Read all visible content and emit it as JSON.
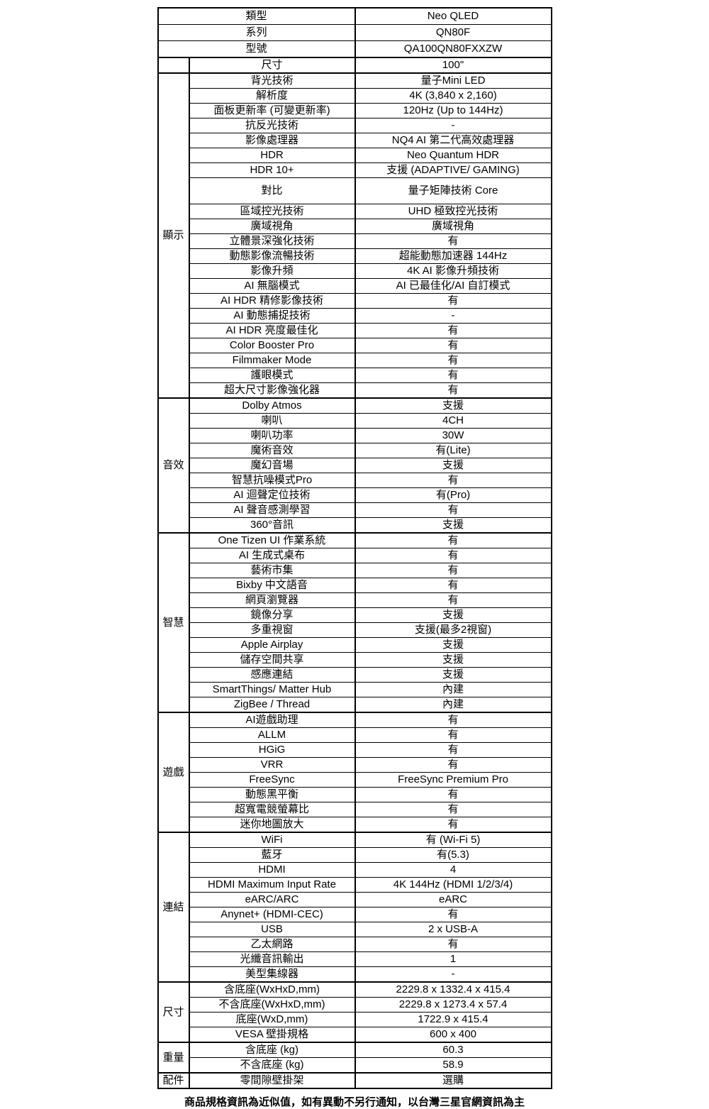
{
  "colors": {
    "background": "#ffffff",
    "text": "#000000",
    "border": "#000000"
  },
  "footer": {
    "note": "商品規格資訊為近似值，如有異動不另行通知，以台灣三星官網資訊為主"
  },
  "spec_table": {
    "groups": [
      {
        "category": null,
        "rows": [
          {
            "label": "類型",
            "value": "Neo QLED"
          },
          {
            "label": "系列",
            "value": "QN80F"
          },
          {
            "label": "型號",
            "value": "QA100QN80FXXZW"
          }
        ]
      },
      {
        "category": "",
        "rows": [
          {
            "label": "尺寸",
            "value": "100\""
          }
        ]
      },
      {
        "category": "顯示",
        "rows": [
          {
            "label": "背光技術",
            "value": "量子Mini LED"
          },
          {
            "label": "解析度",
            "value": "4K (3,840 x 2,160)"
          },
          {
            "label": "面板更新率 (可變更新率)",
            "value": "120Hz (Up to 144Hz)"
          },
          {
            "label": "抗反光技術",
            "value": "-"
          },
          {
            "label": "影像處理器",
            "value": "NQ4 AI 第二代高效處理器"
          },
          {
            "label": "HDR",
            "value": "Neo Quantum HDR"
          },
          {
            "label": "HDR 10+",
            "value": "支援 (ADAPTIVE/ GAMING)"
          },
          {
            "label": "對比",
            "value": "量子矩陣技術 Core",
            "tall": true
          },
          {
            "label": "區域控光技術",
            "value": "UHD 極致控光技術"
          },
          {
            "label": "廣域視角",
            "value": "廣域視角"
          },
          {
            "label": "立體景深強化技術",
            "value": "有"
          },
          {
            "label": "動態影像流暢技術",
            "value": "超能動態加速器 144Hz"
          },
          {
            "label": "影像升頻",
            "value": "4K AI 影像升頻技術"
          },
          {
            "label": "AI 無腦模式",
            "value": "AI 已最佳化/AI 自訂模式"
          },
          {
            "label": "AI HDR 精修影像技術",
            "value": "有"
          },
          {
            "label": "AI 動態捕捉技術",
            "value": "-"
          },
          {
            "label": "AI HDR 亮度最佳化",
            "value": "有"
          },
          {
            "label": "Color Booster Pro",
            "value": "有"
          },
          {
            "label": "Filmmaker Mode",
            "value": "有"
          },
          {
            "label": "護眼模式",
            "value": "有"
          },
          {
            "label": "超大尺寸影像強化器",
            "value": "有"
          }
        ]
      },
      {
        "category": "音效",
        "rows": [
          {
            "label": "Dolby Atmos",
            "value": "支援"
          },
          {
            "label": "喇叭",
            "value": "4CH"
          },
          {
            "label": "喇叭功率",
            "value": "30W"
          },
          {
            "label": "魔術音效",
            "value": "有(Lite)"
          },
          {
            "label": "魔幻音場",
            "value": "支援"
          },
          {
            "label": "智慧抗噪模式Pro",
            "value": "有"
          },
          {
            "label": "AI 迴聲定位技術",
            "value": "有(Pro)"
          },
          {
            "label": "AI 聲音感測學習",
            "value": "有"
          },
          {
            "label": "360°音訊",
            "value": "支援"
          }
        ]
      },
      {
        "category": "智慧",
        "rows": [
          {
            "label": "One Tizen UI 作業系統",
            "value": "有"
          },
          {
            "label": "AI 生成式桌布",
            "value": "有"
          },
          {
            "label": "藝術市集",
            "value": "有"
          },
          {
            "label": "Bixby 中文語音",
            "value": "有"
          },
          {
            "label": "網頁瀏覽器",
            "value": "有"
          },
          {
            "label": "鏡像分享",
            "value": "支援"
          },
          {
            "label": "多重視窗",
            "value": "支援(最多2視窗)"
          },
          {
            "label": "Apple Airplay",
            "value": "支援"
          },
          {
            "label": "儲存空間共享",
            "value": "支援"
          },
          {
            "label": "感應連結",
            "value": "支援"
          },
          {
            "label": "SmartThings/ Matter Hub",
            "value": "內建"
          },
          {
            "label": "ZigBee / Thread",
            "value": "內建"
          }
        ]
      },
      {
        "category": "遊戲",
        "rows": [
          {
            "label": "AI遊戲助理",
            "value": "有"
          },
          {
            "label": "ALLM",
            "value": "有"
          },
          {
            "label": "HGiG",
            "value": "有"
          },
          {
            "label": "VRR",
            "value": "有"
          },
          {
            "label": "FreeSync",
            "value": "FreeSync Premium Pro"
          },
          {
            "label": "動態黑平衡",
            "value": "有"
          },
          {
            "label": "超寬電競螢幕比",
            "value": "有"
          },
          {
            "label": "迷你地圖放大",
            "value": "有"
          }
        ]
      },
      {
        "category": "連結",
        "rows": [
          {
            "label": "WiFi",
            "value": "有 (Wi-Fi 5)"
          },
          {
            "label": "藍牙",
            "value": "有(5.3)"
          },
          {
            "label": "HDMI",
            "value": "4"
          },
          {
            "label": "HDMI Maximum Input Rate",
            "value": "4K 144Hz (HDMI 1/2/3/4)"
          },
          {
            "label": "eARC/ARC",
            "value": "eARC"
          },
          {
            "label": "Anynet+ (HDMI-CEC)",
            "value": "有"
          },
          {
            "label": "USB",
            "value": "2 x USB-A"
          },
          {
            "label": "乙太網路",
            "value": "有"
          },
          {
            "label": "光纖音訊輸出",
            "value": "1"
          },
          {
            "label": "美型集線器",
            "value": "-"
          }
        ]
      },
      {
        "category": "尺寸",
        "rows": [
          {
            "label": "含底座(WxHxD,mm)",
            "value": "2229.8 x 1332.4 x 415.4"
          },
          {
            "label": "不含底座(WxHxD,mm)",
            "value": "2229.8 x 1273.4 x 57.4"
          },
          {
            "label": "底座(WxD,mm)",
            "value": "1722.9 x 415.4"
          },
          {
            "label": "VESA 壁掛規格",
            "value": "600 x 400"
          }
        ]
      },
      {
        "category": "重量",
        "rows": [
          {
            "label": "含底座 (kg)",
            "value": "60.3"
          },
          {
            "label": "不含底座 (kg)",
            "value": "58.9"
          }
        ]
      },
      {
        "category": "配件",
        "rows": [
          {
            "label": "零間隙壁掛架",
            "value": "選購"
          }
        ]
      }
    ]
  }
}
